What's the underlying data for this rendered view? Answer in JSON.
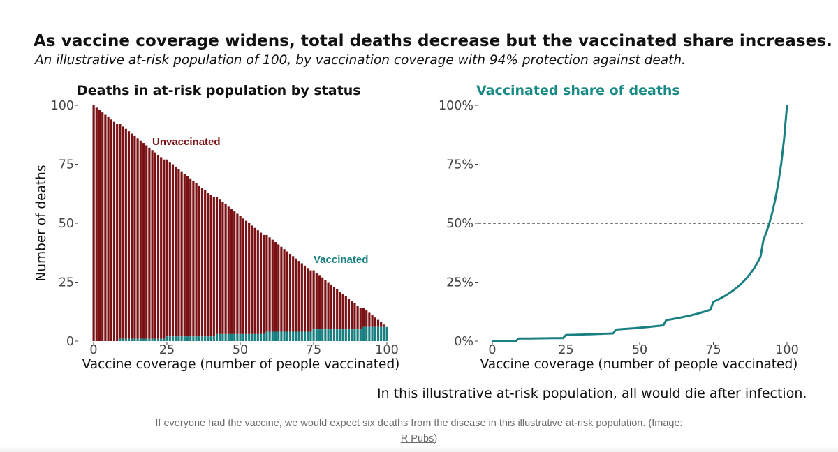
{
  "title": "As vaccine coverage widens, total deaths decrease but the vaccinated share increases.",
  "subtitle": "An illustrative at-risk population of 100, by vaccination coverage with 94% protection against death.",
  "footnote": "In this illustrative at-risk population, all would die after infection.",
  "caption": {
    "text": "If everyone had the vaccine, we would expect six deaths from the disease in this illustrative at-risk population. (Image:",
    "link_label": "R Pubs",
    "close": ")"
  },
  "colors": {
    "unvaccinated": "#7a1114",
    "vaccinated": "#1a7f80",
    "line": "#1a7f80",
    "right_title": "#1a8a86"
  },
  "chart_data": [
    {
      "type": "bar",
      "stacked": true,
      "title": "Deaths in at-risk population by status",
      "xlabel": "Vaccine coverage (number of people vaccinated)",
      "ylabel": "Number of deaths",
      "xlim": [
        0,
        100
      ],
      "ylim": [
        0,
        100
      ],
      "xticks": [
        0,
        25,
        50,
        75,
        100
      ],
      "yticks": [
        0,
        25,
        50,
        75,
        100
      ],
      "xtick_labels": [
        "0",
        "25",
        "50",
        "75",
        "100"
      ],
      "ytick_labels": [
        "0",
        "25",
        "50",
        "75",
        "100"
      ],
      "series": [
        {
          "name": "Unvaccinated",
          "formula": "100 - coverage",
          "x_start": 0,
          "x_end": 100
        },
        {
          "name": "Vaccinated",
          "formula": "round(coverage * 0.06)",
          "x_start": 0,
          "x_end": 100
        }
      ],
      "grid": false
    },
    {
      "type": "line",
      "title": "Vaccinated share of deaths",
      "xlabel": "Vaccine coverage (number of people vaccinated)",
      "ylabel": "",
      "xlim": [
        0,
        100
      ],
      "ylim": [
        0,
        1
      ],
      "xticks": [
        0,
        25,
        50,
        75,
        100
      ],
      "yticks": [
        0,
        0.25,
        0.5,
        0.75,
        1
      ],
      "xtick_labels": [
        "0",
        "25",
        "50",
        "75",
        "100"
      ],
      "ytick_labels": [
        "0%",
        "25%",
        "50%",
        "75%",
        "100%"
      ],
      "reference_line": {
        "y": 0.5,
        "style": "dashed"
      },
      "series": [
        {
          "name": "Vaccinated share of deaths",
          "formula": "round(coverage*0.06) / (round(coverage*0.06) + 100 - coverage)"
        }
      ],
      "grid": false
    }
  ]
}
